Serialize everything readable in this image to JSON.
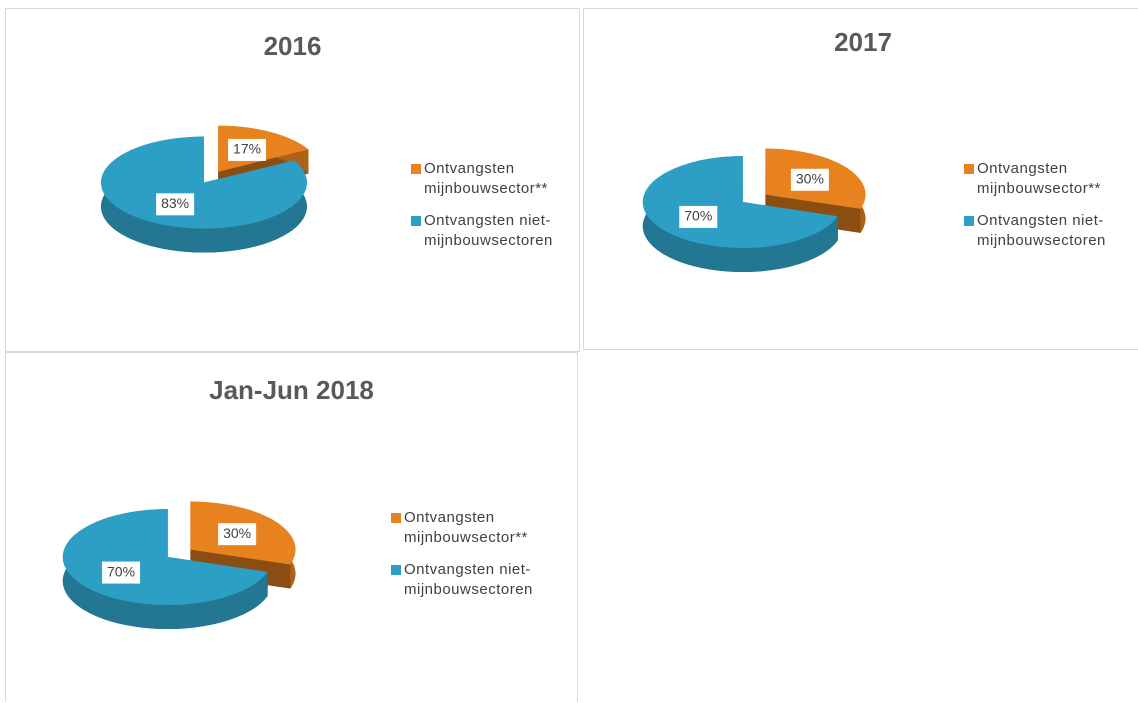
{
  "chart_data": [
    {
      "type": "pie",
      "title": "2016",
      "categories": [
        "Ontvangsten mijnbouwsector**",
        "Ontvangsten niet-mijnbouwsectoren"
      ],
      "values": [
        17,
        83
      ],
      "value_labels": [
        "17%",
        "83%"
      ],
      "colors": [
        "#e8821e",
        "#2e9fc4"
      ]
    },
    {
      "type": "pie",
      "title": "2017",
      "categories": [
        "Ontvangsten mijnbouwsector**",
        "Ontvangsten niet-mijnbouwsectoren"
      ],
      "values": [
        30,
        70
      ],
      "value_labels": [
        "30%",
        "70%"
      ],
      "colors": [
        "#e8821e",
        "#2e9fc4"
      ]
    },
    {
      "type": "pie",
      "title": "Jan-Jun 2018",
      "categories": [
        "Ontvangsten mijnbouwsector**",
        "Ontvangsten niet-mijnbouwsectoren"
      ],
      "values": [
        30,
        70
      ],
      "value_labels": [
        "30%",
        "70%"
      ],
      "colors": [
        "#e8821e",
        "#2e9fc4"
      ]
    }
  ]
}
